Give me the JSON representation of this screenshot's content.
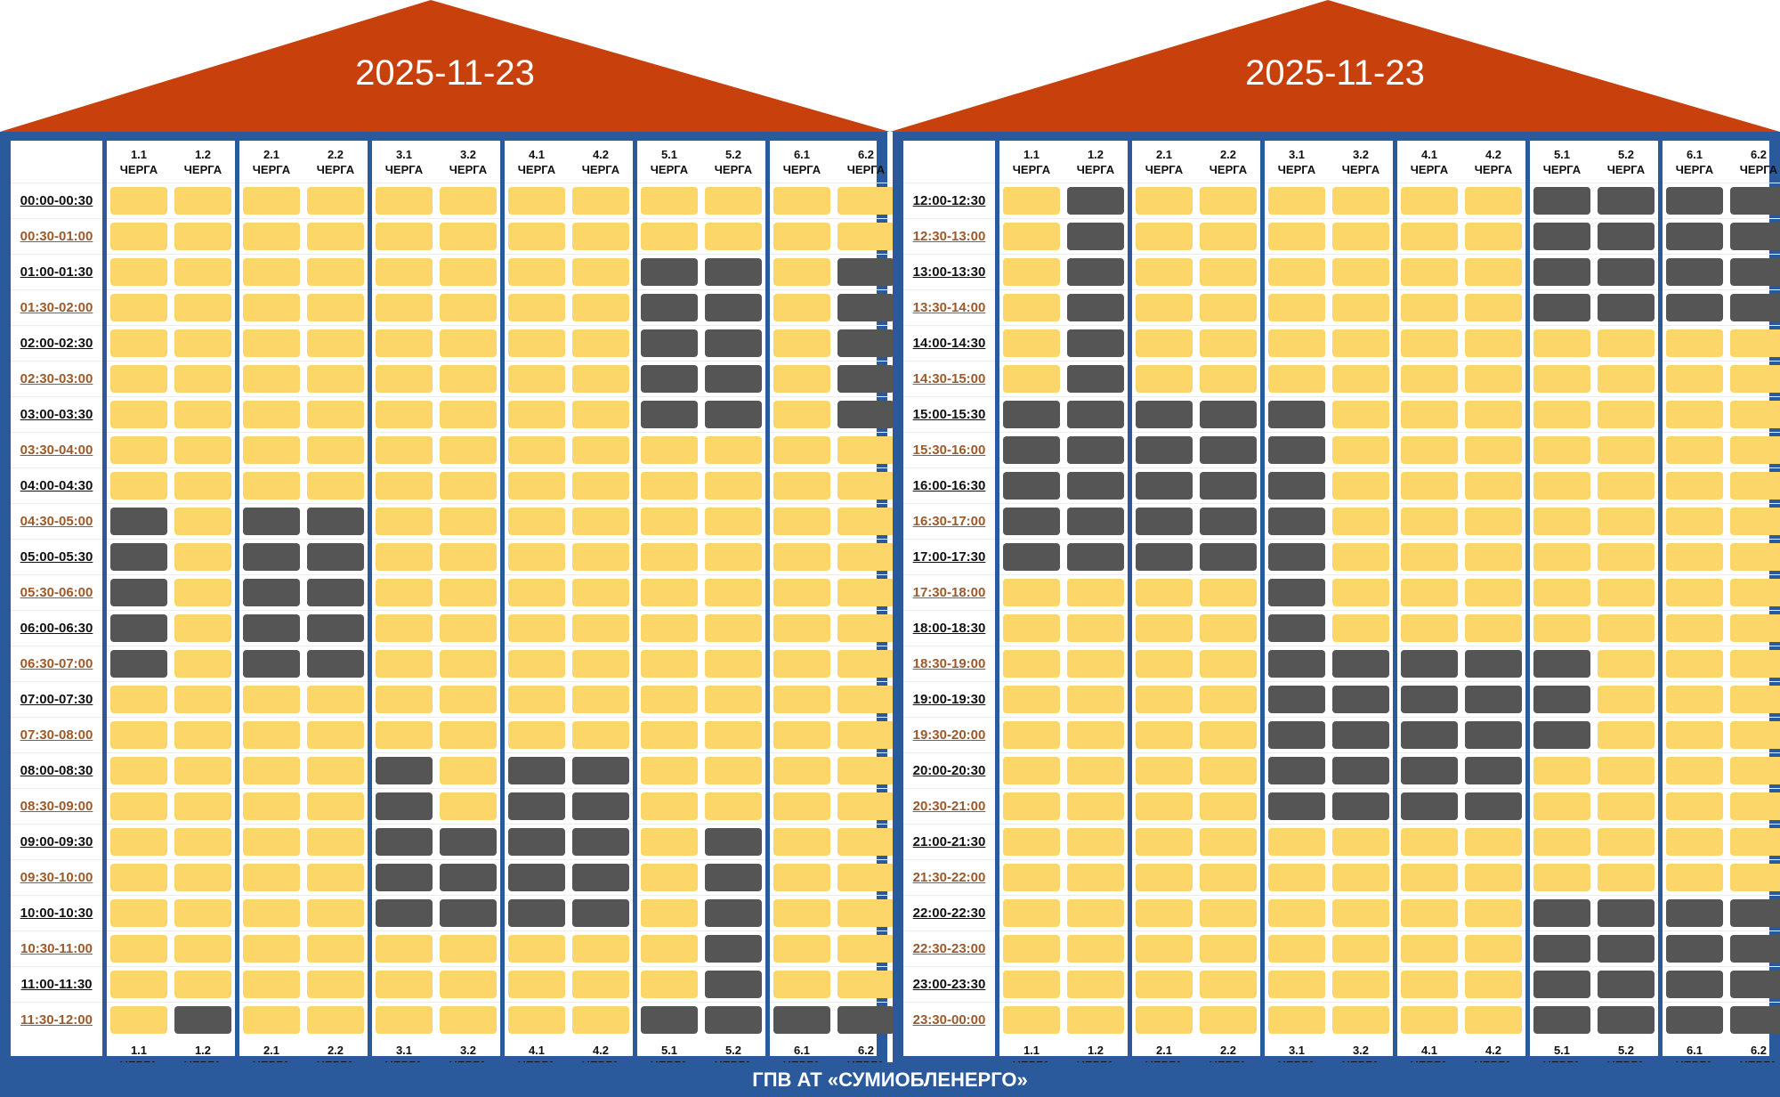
{
  "footer_label": "ГПВ АТ «СУМИОБЛЕНЕРГО»",
  "colors": {
    "roof": "#c8410d",
    "frame": "#2a5a9c",
    "power_on": "#fcd668",
    "power_off": "#555555"
  },
  "legend_note_power_on": "yellow",
  "legend_note_power_off": "dark-grey",
  "queues": [
    {
      "num": "1.1",
      "word": "ЧЕРГА"
    },
    {
      "num": "1.2",
      "word": "ЧЕРГА"
    },
    {
      "num": "2.1",
      "word": "ЧЕРГА"
    },
    {
      "num": "2.2",
      "word": "ЧЕРГА"
    },
    {
      "num": "3.1",
      "word": "ЧЕРГА"
    },
    {
      "num": "3.2",
      "word": "ЧЕРГА"
    },
    {
      "num": "4.1",
      "word": "ЧЕРГА"
    },
    {
      "num": "4.2",
      "word": "ЧЕРГА"
    },
    {
      "num": "5.1",
      "word": "ЧЕРГА"
    },
    {
      "num": "5.2",
      "word": "ЧЕРГА"
    },
    {
      "num": "6.1",
      "word": "ЧЕРГА"
    },
    {
      "num": "6.2",
      "word": "ЧЕРГА"
    }
  ],
  "panels": [
    {
      "date": "2025-11-23",
      "rows": [
        {
          "time": "00:00-00:30",
          "outages": [
            0,
            0,
            0,
            0,
            0,
            0,
            0,
            0,
            0,
            0,
            0,
            0
          ]
        },
        {
          "time": "00:30-01:00",
          "outages": [
            0,
            0,
            0,
            0,
            0,
            0,
            0,
            0,
            0,
            0,
            0,
            0
          ]
        },
        {
          "time": "01:00-01:30",
          "outages": [
            0,
            0,
            0,
            0,
            0,
            0,
            0,
            0,
            1,
            1,
            0,
            1
          ]
        },
        {
          "time": "01:30-02:00",
          "outages": [
            0,
            0,
            0,
            0,
            0,
            0,
            0,
            0,
            1,
            1,
            0,
            1
          ]
        },
        {
          "time": "02:00-02:30",
          "outages": [
            0,
            0,
            0,
            0,
            0,
            0,
            0,
            0,
            1,
            1,
            0,
            1
          ]
        },
        {
          "time": "02:30-03:00",
          "outages": [
            0,
            0,
            0,
            0,
            0,
            0,
            0,
            0,
            1,
            1,
            0,
            1
          ]
        },
        {
          "time": "03:00-03:30",
          "outages": [
            0,
            0,
            0,
            0,
            0,
            0,
            0,
            0,
            1,
            1,
            0,
            1
          ]
        },
        {
          "time": "03:30-04:00",
          "outages": [
            0,
            0,
            0,
            0,
            0,
            0,
            0,
            0,
            0,
            0,
            0,
            0
          ]
        },
        {
          "time": "04:00-04:30",
          "outages": [
            0,
            0,
            0,
            0,
            0,
            0,
            0,
            0,
            0,
            0,
            0,
            0
          ]
        },
        {
          "time": "04:30-05:00",
          "outages": [
            1,
            0,
            1,
            1,
            0,
            0,
            0,
            0,
            0,
            0,
            0,
            0
          ]
        },
        {
          "time": "05:00-05:30",
          "outages": [
            1,
            0,
            1,
            1,
            0,
            0,
            0,
            0,
            0,
            0,
            0,
            0
          ]
        },
        {
          "time": "05:30-06:00",
          "outages": [
            1,
            0,
            1,
            1,
            0,
            0,
            0,
            0,
            0,
            0,
            0,
            0
          ]
        },
        {
          "time": "06:00-06:30",
          "outages": [
            1,
            0,
            1,
            1,
            0,
            0,
            0,
            0,
            0,
            0,
            0,
            0
          ]
        },
        {
          "time": "06:30-07:00",
          "outages": [
            1,
            0,
            1,
            1,
            0,
            0,
            0,
            0,
            0,
            0,
            0,
            0
          ]
        },
        {
          "time": "07:00-07:30",
          "outages": [
            0,
            0,
            0,
            0,
            0,
            0,
            0,
            0,
            0,
            0,
            0,
            0
          ]
        },
        {
          "time": "07:30-08:00",
          "outages": [
            0,
            0,
            0,
            0,
            0,
            0,
            0,
            0,
            0,
            0,
            0,
            0
          ]
        },
        {
          "time": "08:00-08:30",
          "outages": [
            0,
            0,
            0,
            0,
            1,
            0,
            1,
            1,
            0,
            0,
            0,
            0
          ]
        },
        {
          "time": "08:30-09:00",
          "outages": [
            0,
            0,
            0,
            0,
            1,
            0,
            1,
            1,
            0,
            0,
            0,
            0
          ]
        },
        {
          "time": "09:00-09:30",
          "outages": [
            0,
            0,
            0,
            0,
            1,
            1,
            1,
            1,
            0,
            1,
            0,
            0
          ]
        },
        {
          "time": "09:30-10:00",
          "outages": [
            0,
            0,
            0,
            0,
            1,
            1,
            1,
            1,
            0,
            1,
            0,
            0
          ]
        },
        {
          "time": "10:00-10:30",
          "outages": [
            0,
            0,
            0,
            0,
            1,
            1,
            1,
            1,
            0,
            1,
            0,
            0
          ]
        },
        {
          "time": "10:30-11:00",
          "outages": [
            0,
            0,
            0,
            0,
            0,
            0,
            0,
            0,
            0,
            1,
            0,
            0
          ]
        },
        {
          "time": "11:00-11:30",
          "outages": [
            0,
            0,
            0,
            0,
            0,
            0,
            0,
            0,
            0,
            1,
            0,
            0
          ]
        },
        {
          "time": "11:30-12:00",
          "outages": [
            0,
            1,
            0,
            0,
            0,
            0,
            0,
            0,
            1,
            1,
            1,
            1
          ]
        }
      ]
    },
    {
      "date": "2025-11-23",
      "rows": [
        {
          "time": "12:00-12:30",
          "outages": [
            0,
            1,
            0,
            0,
            0,
            0,
            0,
            0,
            1,
            1,
            1,
            1
          ]
        },
        {
          "time": "12:30-13:00",
          "outages": [
            0,
            1,
            0,
            0,
            0,
            0,
            0,
            0,
            1,
            1,
            1,
            1
          ]
        },
        {
          "time": "13:00-13:30",
          "outages": [
            0,
            1,
            0,
            0,
            0,
            0,
            0,
            0,
            1,
            1,
            1,
            1
          ]
        },
        {
          "time": "13:30-14:00",
          "outages": [
            0,
            1,
            0,
            0,
            0,
            0,
            0,
            0,
            1,
            1,
            1,
            1
          ]
        },
        {
          "time": "14:00-14:30",
          "outages": [
            0,
            1,
            0,
            0,
            0,
            0,
            0,
            0,
            0,
            0,
            0,
            0
          ]
        },
        {
          "time": "14:30-15:00",
          "outages": [
            0,
            1,
            0,
            0,
            0,
            0,
            0,
            0,
            0,
            0,
            0,
            0
          ]
        },
        {
          "time": "15:00-15:30",
          "outages": [
            1,
            1,
            1,
            1,
            1,
            0,
            0,
            0,
            0,
            0,
            0,
            0
          ]
        },
        {
          "time": "15:30-16:00",
          "outages": [
            1,
            1,
            1,
            1,
            1,
            0,
            0,
            0,
            0,
            0,
            0,
            0
          ]
        },
        {
          "time": "16:00-16:30",
          "outages": [
            1,
            1,
            1,
            1,
            1,
            0,
            0,
            0,
            0,
            0,
            0,
            0
          ]
        },
        {
          "time": "16:30-17:00",
          "outages": [
            1,
            1,
            1,
            1,
            1,
            0,
            0,
            0,
            0,
            0,
            0,
            0
          ]
        },
        {
          "time": "17:00-17:30",
          "outages": [
            1,
            1,
            1,
            1,
            1,
            0,
            0,
            0,
            0,
            0,
            0,
            0
          ]
        },
        {
          "time": "17:30-18:00",
          "outages": [
            0,
            0,
            0,
            0,
            1,
            0,
            0,
            0,
            0,
            0,
            0,
            0
          ]
        },
        {
          "time": "18:00-18:30",
          "outages": [
            0,
            0,
            0,
            0,
            1,
            0,
            0,
            0,
            0,
            0,
            0,
            0
          ]
        },
        {
          "time": "18:30-19:00",
          "outages": [
            0,
            0,
            0,
            0,
            1,
            1,
            1,
            1,
            1,
            0,
            0,
            0
          ]
        },
        {
          "time": "19:00-19:30",
          "outages": [
            0,
            0,
            0,
            0,
            1,
            1,
            1,
            1,
            1,
            0,
            0,
            0
          ]
        },
        {
          "time": "19:30-20:00",
          "outages": [
            0,
            0,
            0,
            0,
            1,
            1,
            1,
            1,
            1,
            0,
            0,
            0
          ]
        },
        {
          "time": "20:00-20:30",
          "outages": [
            0,
            0,
            0,
            0,
            1,
            1,
            1,
            1,
            0,
            0,
            0,
            0
          ]
        },
        {
          "time": "20:30-21:00",
          "outages": [
            0,
            0,
            0,
            0,
            1,
            1,
            1,
            1,
            0,
            0,
            0,
            0
          ]
        },
        {
          "time": "21:00-21:30",
          "outages": [
            0,
            0,
            0,
            0,
            0,
            0,
            0,
            0,
            0,
            0,
            0,
            0
          ]
        },
        {
          "time": "21:30-22:00",
          "outages": [
            0,
            0,
            0,
            0,
            0,
            0,
            0,
            0,
            0,
            0,
            0,
            0
          ]
        },
        {
          "time": "22:00-22:30",
          "outages": [
            0,
            0,
            0,
            0,
            0,
            0,
            0,
            0,
            1,
            1,
            1,
            1
          ]
        },
        {
          "time": "22:30-23:00",
          "outages": [
            0,
            0,
            0,
            0,
            0,
            0,
            0,
            0,
            1,
            1,
            1,
            1
          ]
        },
        {
          "time": "23:00-23:30",
          "outages": [
            0,
            0,
            0,
            0,
            0,
            0,
            0,
            0,
            1,
            1,
            1,
            1
          ]
        },
        {
          "time": "23:30-00:00",
          "outages": [
            0,
            0,
            0,
            0,
            0,
            0,
            0,
            0,
            1,
            1,
            1,
            1
          ]
        }
      ]
    }
  ]
}
